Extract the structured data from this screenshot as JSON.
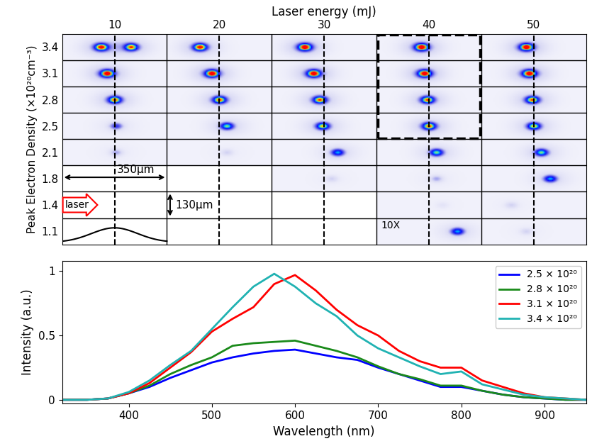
{
  "chart_data": [
    {
      "type": "image_grid",
      "xlabel": "Laser energy (mJ)",
      "ylabel": "Peak Electron Density (×10²⁰cm⁻³)",
      "energies": [
        10,
        20,
        30,
        40,
        50
      ],
      "densities": [
        3.4,
        3.1,
        2.8,
        2.5,
        2.1,
        1.8,
        1.4,
        1.1
      ],
      "cell_width_label": "350μm",
      "cell_height_label": "130μm",
      "laser_label": "laser",
      "gain_label": "10X",
      "spots": [
        {
          "energy": 10,
          "density": 3.4,
          "x": 130,
          "intensity": 0.9
        },
        {
          "energy": 10,
          "density": 3.4,
          "x": 230,
          "intensity": 0.8
        },
        {
          "energy": 10,
          "density": 3.1,
          "x": 150,
          "intensity": 1.0
        },
        {
          "energy": 10,
          "density": 2.8,
          "x": 175,
          "intensity": 0.8
        },
        {
          "energy": 10,
          "density": 2.5,
          "x": 180,
          "intensity": 0.3
        },
        {
          "energy": 10,
          "density": 2.1,
          "x": 180,
          "intensity": 0.15
        },
        {
          "energy": 20,
          "density": 3.4,
          "x": 110,
          "intensity": 0.9
        },
        {
          "energy": 20,
          "density": 3.1,
          "x": 150,
          "intensity": 1.0
        },
        {
          "energy": 20,
          "density": 2.8,
          "x": 175,
          "intensity": 0.8
        },
        {
          "energy": 20,
          "density": 2.5,
          "x": 200,
          "intensity": 0.6
        },
        {
          "energy": 20,
          "density": 2.1,
          "x": 200,
          "intensity": 0.1
        },
        {
          "energy": 30,
          "density": 3.4,
          "x": 110,
          "intensity": 1.0
        },
        {
          "energy": 30,
          "density": 3.1,
          "x": 140,
          "intensity": 1.0
        },
        {
          "energy": 30,
          "density": 2.8,
          "x": 160,
          "intensity": 0.8
        },
        {
          "energy": 30,
          "density": 2.5,
          "x": 170,
          "intensity": 0.7
        },
        {
          "energy": 30,
          "density": 2.1,
          "x": 220,
          "intensity": 0.5
        },
        {
          "energy": 30,
          "density": 1.8,
          "x": 200,
          "intensity": 0.1
        },
        {
          "energy": 40,
          "density": 3.4,
          "x": 150,
          "intensity": 1.0
        },
        {
          "energy": 40,
          "density": 3.1,
          "x": 160,
          "intensity": 1.0
        },
        {
          "energy": 40,
          "density": 2.8,
          "x": 170,
          "intensity": 0.8
        },
        {
          "energy": 40,
          "density": 2.5,
          "x": 175,
          "intensity": 0.8
        },
        {
          "energy": 40,
          "density": 2.1,
          "x": 200,
          "intensity": 0.6
        },
        {
          "energy": 40,
          "density": 1.8,
          "x": 200,
          "intensity": 0.15
        },
        {
          "energy": 40,
          "density": 1.4,
          "x": 220,
          "intensity": 0.05
        },
        {
          "energy": 40,
          "density": 1.1,
          "x": 270,
          "intensity": 0.5
        },
        {
          "energy": 50,
          "density": 3.4,
          "x": 150,
          "intensity": 1.0
        },
        {
          "energy": 50,
          "density": 3.1,
          "x": 160,
          "intensity": 1.0
        },
        {
          "energy": 50,
          "density": 2.8,
          "x": 170,
          "intensity": 0.8
        },
        {
          "energy": 50,
          "density": 2.5,
          "x": 175,
          "intensity": 0.7
        },
        {
          "energy": 50,
          "density": 2.1,
          "x": 200,
          "intensity": 0.6
        },
        {
          "energy": 50,
          "density": 1.8,
          "x": 230,
          "intensity": 0.5
        },
        {
          "energy": 50,
          "density": 1.4,
          "x": 100,
          "intensity": 0.1
        },
        {
          "energy": 50,
          "density": 1.1,
          "x": 150,
          "intensity": 0.1
        }
      ]
    },
    {
      "type": "line",
      "xlabel": "Wavelength (nm)",
      "ylabel": "Intensity (a.u.)",
      "x": [
        320,
        350,
        375,
        400,
        425,
        450,
        475,
        500,
        525,
        550,
        575,
        600,
        625,
        650,
        675,
        700,
        725,
        750,
        775,
        800,
        825,
        850,
        875,
        900,
        925,
        950
      ],
      "series": [
        {
          "name": "2.5 × 10²⁰",
          "color": "#0000ff",
          "values": [
            0,
            0,
            0.01,
            0.05,
            0.1,
            0.17,
            0.23,
            0.29,
            0.33,
            0.36,
            0.38,
            0.39,
            0.36,
            0.33,
            0.31,
            0.25,
            0.2,
            0.15,
            0.1,
            0.1,
            0.07,
            0.04,
            0.02,
            0.01,
            0,
            0
          ]
        },
        {
          "name": "2.8 × 10²⁰",
          "color": "#1a8a1a",
          "values": [
            0,
            0,
            0.01,
            0.05,
            0.11,
            0.2,
            0.27,
            0.33,
            0.42,
            0.44,
            0.45,
            0.46,
            0.42,
            0.38,
            0.33,
            0.26,
            0.2,
            0.16,
            0.11,
            0.11,
            0.07,
            0.04,
            0.02,
            0.01,
            0,
            0
          ]
        },
        {
          "name": "3.1 × 10²⁰",
          "color": "#ff0000",
          "values": [
            0,
            0,
            0.01,
            0.05,
            0.13,
            0.25,
            0.37,
            0.53,
            0.63,
            0.72,
            0.9,
            0.97,
            0.85,
            0.7,
            0.58,
            0.5,
            0.38,
            0.3,
            0.25,
            0.25,
            0.15,
            0.1,
            0.05,
            0.02,
            0.01,
            0
          ]
        },
        {
          "name": "3.4 × 10²⁰",
          "color": "#20b2b2",
          "values": [
            0,
            0,
            0.01,
            0.06,
            0.15,
            0.27,
            0.38,
            0.55,
            0.72,
            0.88,
            0.98,
            0.88,
            0.75,
            0.65,
            0.5,
            0.4,
            0.33,
            0.26,
            0.2,
            0.22,
            0.12,
            0.08,
            0.04,
            0.02,
            0.01,
            0
          ]
        }
      ],
      "xlim": [
        320,
        950
      ],
      "xticks": [
        400,
        500,
        600,
        700,
        800,
        900
      ],
      "ylim": [
        -0.03,
        1.08
      ],
      "yticks": [
        0,
        0.5,
        1
      ],
      "legend": "upper right"
    }
  ]
}
